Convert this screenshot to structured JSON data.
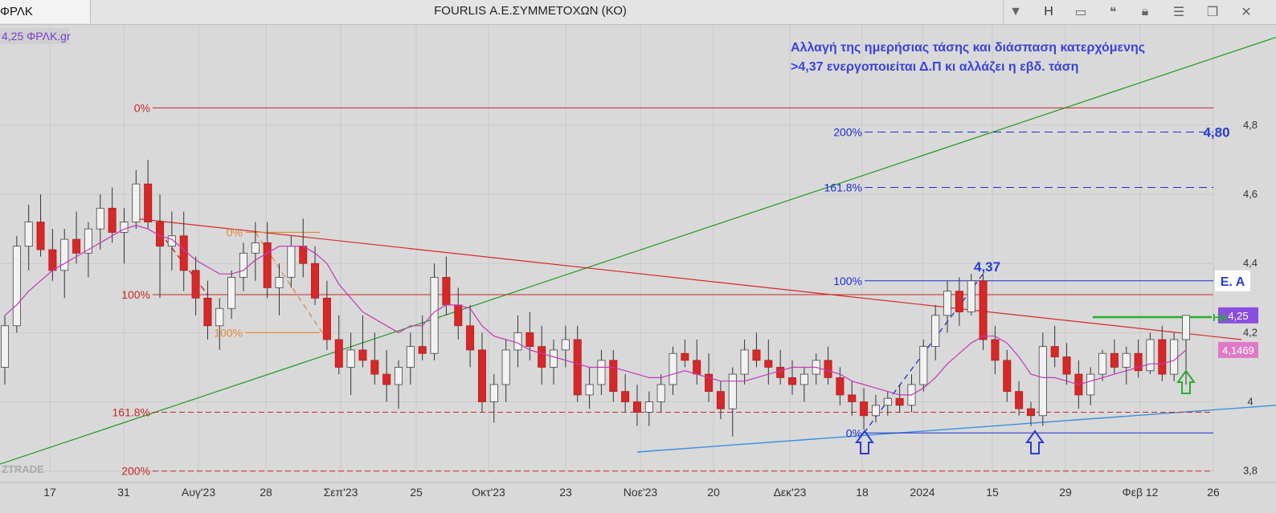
{
  "window": {
    "tab_label": "ΦΡΛΚ",
    "title": "FOURLIS Α.Ε.ΣΥΜΜΕΤΟΧΩΝ (ΚΟ)",
    "h_label": "H",
    "icons": [
      "dropdown-icon",
      "bar-icon",
      "window-icon",
      "comment-icon",
      "lock-icon",
      "menu-icon",
      "restore-icon",
      "close-icon"
    ]
  },
  "chart_data": {
    "type": "candlestick",
    "symbol_label": "4,25 ΦΡΛΚ.gr",
    "watermark": "ZTRADE",
    "annotation": [
      "Αλλαγή της ημερήσιας τάσης και διάσπαση κατερχόμενης",
      ">4,37 ενεργοποιείται Δ.Π κι αλλάζει η εβδ. τάση"
    ],
    "y_axis": {
      "ticks": [
        "4,8",
        "4,6",
        "4,4",
        "4,2",
        "4",
        "3,8"
      ],
      "range": [
        3.79,
        5.09
      ]
    },
    "x_axis": {
      "ticks": [
        "17",
        "31",
        "Αυγ'23",
        "28",
        "Σεπ'23",
        "25",
        "Οκτ'23",
        "23",
        "Νοε'23",
        "20",
        "Δεκ'23",
        "18",
        "2024",
        "15",
        "29",
        "Φεβ 12",
        "26"
      ]
    },
    "price_labels": {
      "last": "4,25",
      "ma": "4,1469",
      "target": "4,80",
      "peak": "4,37",
      "ea": "Ε. Α",
      "ha": "HA"
    },
    "fib_labels": {
      "red": [
        "0%",
        "100%",
        "161.8%",
        "200%"
      ],
      "orange": [
        "0%",
        "100%"
      ],
      "blue": [
        "200%",
        "161.8%",
        "100%",
        "0%"
      ]
    },
    "fib_levels": {
      "red_0": 4.85,
      "red_100": 4.31,
      "red_161": 3.97,
      "red_200": 3.8,
      "blue_200": 4.78,
      "blue_161": 4.62,
      "blue_100": 4.35,
      "blue_0": 3.91,
      "ha": 4.245
    },
    "series": [
      {
        "values": [
          [
            4.1,
            4.25,
            4.05,
            4.22
          ],
          [
            4.22,
            4.48,
            4.2,
            4.45
          ],
          [
            4.45,
            4.57,
            4.38,
            4.52
          ],
          [
            4.52,
            4.6,
            4.42,
            4.44
          ],
          [
            4.44,
            4.5,
            4.35,
            4.38
          ],
          [
            4.38,
            4.5,
            4.3,
            4.47
          ],
          [
            4.47,
            4.55,
            4.4,
            4.43
          ],
          [
            4.43,
            4.52,
            4.36,
            4.5
          ],
          [
            4.5,
            4.6,
            4.44,
            4.56
          ],
          [
            4.56,
            4.62,
            4.46,
            4.49
          ],
          [
            4.49,
            4.56,
            4.4,
            4.52
          ],
          [
            4.52,
            4.67,
            4.5,
            4.63
          ],
          [
            4.63,
            4.7,
            4.5,
            4.52
          ],
          [
            4.52,
            4.6,
            4.3,
            4.45
          ],
          [
            4.45,
            4.55,
            4.38,
            4.48
          ],
          [
            4.48,
            4.55,
            4.32,
            4.38
          ],
          [
            4.38,
            4.42,
            4.25,
            4.3
          ],
          [
            4.3,
            4.35,
            4.18,
            4.22
          ],
          [
            4.22,
            4.3,
            4.15,
            4.27
          ],
          [
            4.27,
            4.38,
            4.24,
            4.36
          ],
          [
            4.36,
            4.46,
            4.32,
            4.43
          ],
          [
            4.43,
            4.52,
            4.35,
            4.46
          ],
          [
            4.46,
            4.52,
            4.3,
            4.33
          ],
          [
            4.33,
            4.4,
            4.25,
            4.36
          ],
          [
            4.36,
            4.48,
            4.33,
            4.45
          ],
          [
            4.45,
            4.53,
            4.36,
            4.4
          ],
          [
            4.4,
            4.45,
            4.28,
            4.3
          ],
          [
            4.3,
            4.35,
            4.15,
            4.18
          ],
          [
            4.18,
            4.25,
            4.08,
            4.1
          ],
          [
            4.1,
            4.2,
            4.02,
            4.15
          ],
          [
            4.15,
            4.25,
            4.1,
            4.12
          ],
          [
            4.12,
            4.2,
            4.05,
            4.08
          ],
          [
            4.08,
            4.15,
            4.0,
            4.05
          ],
          [
            4.05,
            4.12,
            3.98,
            4.1
          ],
          [
            4.1,
            4.2,
            4.05,
            4.16
          ],
          [
            4.16,
            4.25,
            4.12,
            4.14
          ],
          [
            4.14,
            4.4,
            4.12,
            4.36
          ],
          [
            4.36,
            4.42,
            4.25,
            4.28
          ],
          [
            4.28,
            4.33,
            4.18,
            4.22
          ],
          [
            4.22,
            4.28,
            4.1,
            4.15
          ],
          [
            4.15,
            4.2,
            3.97,
            4.0
          ],
          [
            4.0,
            4.08,
            3.94,
            4.05
          ],
          [
            4.05,
            4.18,
            4.0,
            4.15
          ],
          [
            4.15,
            4.25,
            4.1,
            4.2
          ],
          [
            4.2,
            4.26,
            4.12,
            4.16
          ],
          [
            4.16,
            4.22,
            4.05,
            4.1
          ],
          [
            4.1,
            4.18,
            4.05,
            4.15
          ],
          [
            4.15,
            4.22,
            4.1,
            4.18
          ],
          [
            4.18,
            4.22,
            4.0,
            4.02
          ],
          [
            4.02,
            4.1,
            3.98,
            4.05
          ],
          [
            4.05,
            4.15,
            4.02,
            4.12
          ],
          [
            4.12,
            4.15,
            4.0,
            4.03
          ],
          [
            4.03,
            4.08,
            3.97,
            4.0
          ],
          [
            4.0,
            4.05,
            3.93,
            3.97
          ],
          [
            3.97,
            4.03,
            3.93,
            4.0
          ],
          [
            4.0,
            4.08,
            3.97,
            4.05
          ],
          [
            4.05,
            4.16,
            4.02,
            4.14
          ],
          [
            4.14,
            4.18,
            4.1,
            4.12
          ],
          [
            4.12,
            4.18,
            4.05,
            4.08
          ],
          [
            4.08,
            4.14,
            4.0,
            4.03
          ],
          [
            4.03,
            4.06,
            3.95,
            3.98
          ],
          [
            3.98,
            4.1,
            3.9,
            4.08
          ],
          [
            4.08,
            4.18,
            4.05,
            4.15
          ],
          [
            4.15,
            4.2,
            4.1,
            4.12
          ],
          [
            4.12,
            4.18,
            4.05,
            4.1
          ],
          [
            4.1,
            4.15,
            4.05,
            4.07
          ],
          [
            4.07,
            4.12,
            4.02,
            4.05
          ],
          [
            4.05,
            4.1,
            4.0,
            4.08
          ],
          [
            4.08,
            4.14,
            4.05,
            4.12
          ],
          [
            4.12,
            4.16,
            4.05,
            4.07
          ],
          [
            4.07,
            4.1,
            3.99,
            4.02
          ],
          [
            4.02,
            4.06,
            3.96,
            4.0
          ],
          [
            4.0,
            4.04,
            3.92,
            3.96
          ],
          [
            3.96,
            4.02,
            3.94,
            3.99
          ],
          [
            3.99,
            4.03,
            3.96,
            4.01
          ],
          [
            4.01,
            4.05,
            3.97,
            3.99
          ],
          [
            3.99,
            4.08,
            3.97,
            4.05
          ],
          [
            4.05,
            4.18,
            4.03,
            4.16
          ],
          [
            4.16,
            4.28,
            4.12,
            4.25
          ],
          [
            4.25,
            4.35,
            4.2,
            4.32
          ],
          [
            4.32,
            4.36,
            4.22,
            4.26
          ],
          [
            4.26,
            4.37,
            4.25,
            4.35
          ],
          [
            4.35,
            4.37,
            4.15,
            4.18
          ],
          [
            4.18,
            4.22,
            4.08,
            4.12
          ],
          [
            4.12,
            4.15,
            4.0,
            4.03
          ],
          [
            4.03,
            4.06,
            3.96,
            3.98
          ],
          [
            3.98,
            4.0,
            3.93,
            3.96
          ],
          [
            3.96,
            4.2,
            3.93,
            4.16
          ],
          [
            4.16,
            4.22,
            4.1,
            4.13
          ],
          [
            4.13,
            4.17,
            4.05,
            4.08
          ],
          [
            4.08,
            4.12,
            3.98,
            4.02
          ],
          [
            4.02,
            4.1,
            3.99,
            4.08
          ],
          [
            4.08,
            4.15,
            4.06,
            4.14
          ],
          [
            4.14,
            4.18,
            4.08,
            4.1
          ],
          [
            4.1,
            4.16,
            4.05,
            4.14
          ],
          [
            4.14,
            4.18,
            4.07,
            4.09
          ],
          [
            4.09,
            4.2,
            4.08,
            4.18
          ],
          [
            4.18,
            4.22,
            4.06,
            4.08
          ],
          [
            4.08,
            4.2,
            4.06,
            4.18
          ],
          [
            4.18,
            4.25,
            4.05,
            4.25
          ]
        ]
      }
    ],
    "ma_values": [
      4.25,
      4.28,
      4.32,
      4.35,
      4.38,
      4.4,
      4.42,
      4.44,
      4.46,
      4.48,
      4.5,
      4.51,
      4.5,
      4.48,
      4.47,
      4.44,
      4.41,
      4.39,
      4.37,
      4.37,
      4.38,
      4.41,
      4.43,
      4.45,
      4.45,
      4.45,
      4.43,
      4.4,
      4.34,
      4.3,
      4.26,
      4.24,
      4.22,
      4.2,
      4.22,
      4.22,
      4.26,
      4.28,
      4.28,
      4.27,
      4.22,
      4.19,
      4.18,
      4.17,
      4.15,
      4.14,
      4.13,
      4.12,
      4.11,
      4.1,
      4.1,
      4.1,
      4.09,
      4.08,
      4.07,
      4.07,
      4.08,
      4.09,
      4.08,
      4.07,
      4.06,
      4.06,
      4.06,
      4.07,
      4.08,
      4.09,
      4.1,
      4.1,
      4.1,
      4.09,
      4.08,
      4.06,
      4.05,
      4.04,
      4.03,
      4.02,
      4.02,
      4.04,
      4.07,
      4.11,
      4.14,
      4.17,
      4.19,
      4.19,
      4.17,
      4.13,
      4.08,
      4.07,
      4.07,
      4.06,
      4.05,
      4.06,
      4.07,
      4.08,
      4.09,
      4.1,
      4.11,
      4.11,
      4.12,
      4.15
    ]
  }
}
